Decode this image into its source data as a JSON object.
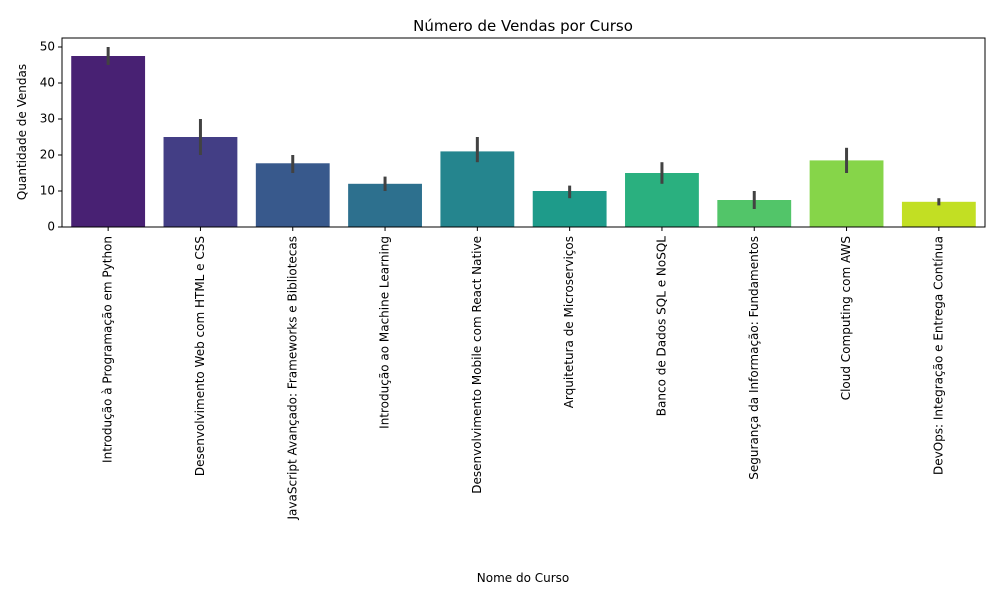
{
  "chart_data": {
    "type": "bar",
    "title": "Número de Vendas por Curso",
    "xlabel": "Nome do Curso",
    "ylabel": "Quantidade de Vendas",
    "ylim": [
      0,
      52.5
    ],
    "yticks": [
      0,
      10,
      20,
      30,
      40,
      50
    ],
    "grid": false,
    "categories": [
      "Introdução à Programação em Python",
      "Desenvolvimento Web com HTML e CSS",
      "JavaScript Avançado: Frameworks e Bibliotecas",
      "Introdução ao Machine Learning",
      "Desenvolvimento Mobile com React Native",
      "Arquitetura de Microserviços",
      "Banco de Dados SQL e NoSQL",
      "Segurança da Informação: Fundamentos",
      "Cloud Computing com AWS",
      "DevOps: Integração e Entrega Contínua"
    ],
    "values": [
      47.5,
      25,
      17.7,
      12,
      21,
      10,
      15,
      7.5,
      18.5,
      7
    ],
    "error_bars": [
      [
        45,
        50
      ],
      [
        20,
        30
      ],
      [
        15,
        20
      ],
      [
        10,
        14
      ],
      [
        18,
        25
      ],
      [
        8,
        11.5
      ],
      [
        12,
        18
      ],
      [
        5,
        10
      ],
      [
        15,
        22
      ],
      [
        6,
        8
      ]
    ],
    "colors": [
      "#482173",
      "#433e85",
      "#38598c",
      "#2d708e",
      "#25858e",
      "#1e9b8a",
      "#2ab07f",
      "#52c569",
      "#86d549",
      "#c2df23"
    ],
    "error_color": "#424242"
  }
}
